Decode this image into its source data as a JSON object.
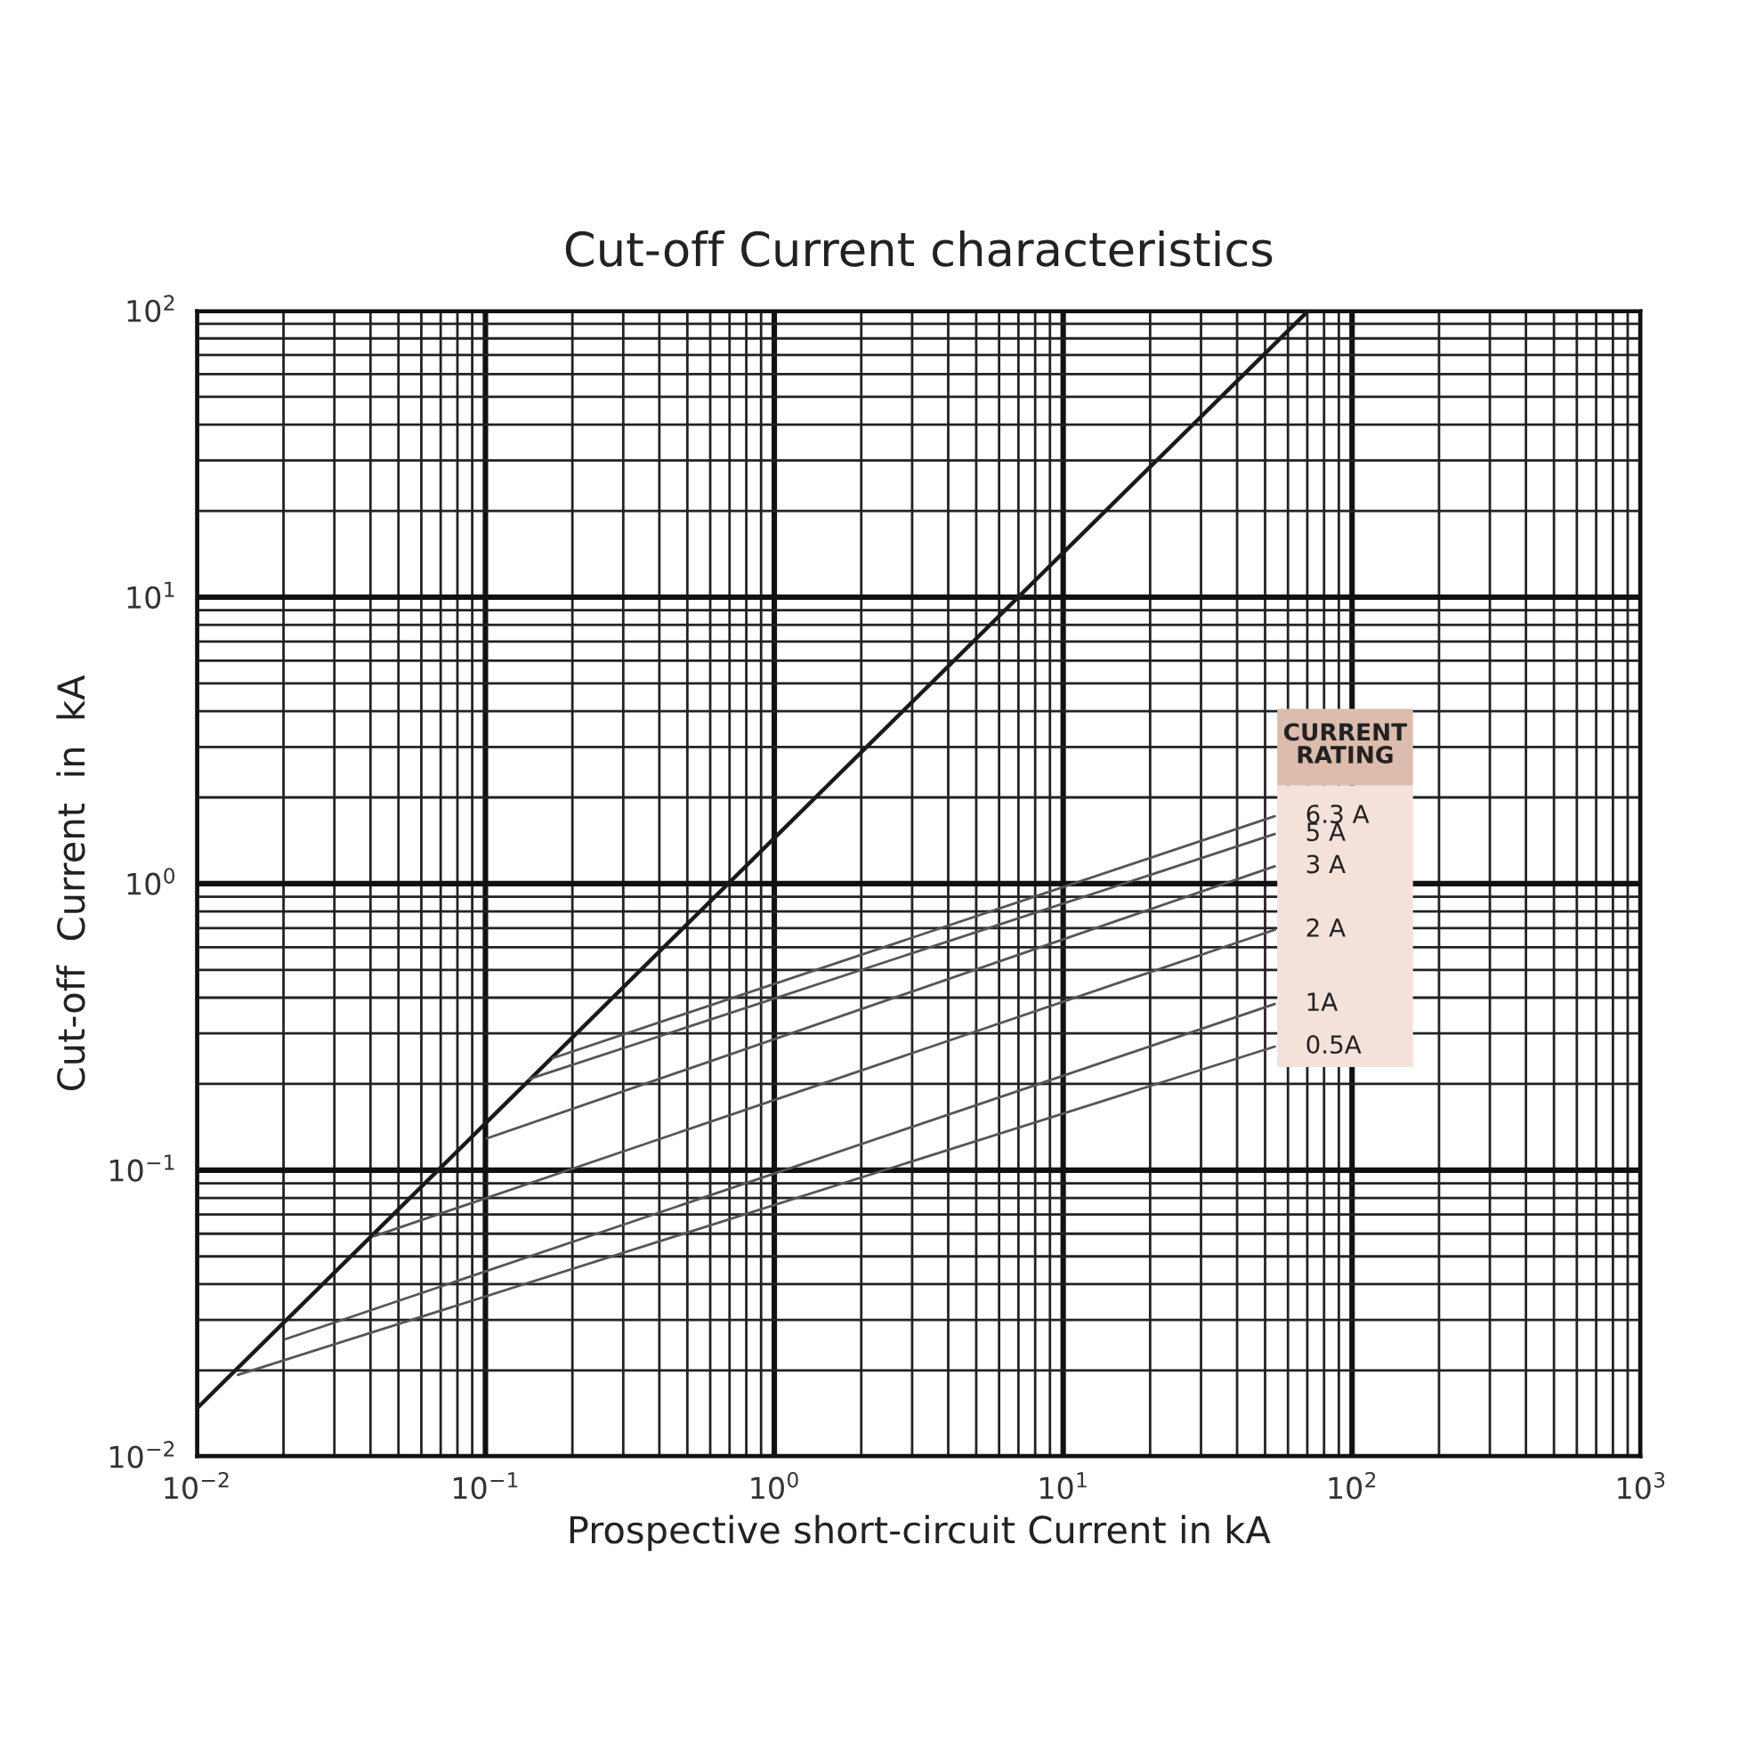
{
  "chart_data": {
    "type": "line",
    "title": "Cut-off Current characteristics",
    "xlabel": "Prospective short-circuit Current in kA",
    "ylabel": "Cut-off  Current  in  kA",
    "legend_title": "CURRENT RATING",
    "legend": "right",
    "log": "xy",
    "grid": true,
    "xlim": [
      0.01,
      1000
    ],
    "ylim": [
      0.01,
      100
    ],
    "xticks": [
      {
        "value": 0.01,
        "label": "10$^{−2}$"
      },
      {
        "value": 0.1,
        "label": "10$^{−1}$"
      },
      {
        "value": 1,
        "label": "10$^{0}$"
      },
      {
        "value": 10,
        "label": "10$^{1}$"
      },
      {
        "value": 100,
        "label": "10$^{2}$"
      },
      {
        "value": 1000,
        "label": "10$^{3}$"
      }
    ],
    "yticks": [
      {
        "value": 0.01,
        "label": "10$^{−2}$"
      },
      {
        "value": 0.1,
        "label": "10$^{−1}$"
      },
      {
        "value": 1,
        "label": "10$^{0}$"
      },
      {
        "value": 10,
        "label": "10$^{1}$"
      },
      {
        "value": 100,
        "label": "10$^{2}$"
      }
    ],
    "series": [
      {
        "color": "#1a1a1a",
        "x": [
          0.01,
          70.6
        ],
        "values": [
          0.0147,
          100
        ]
      },
      {
        "name": "6.3 A",
        "color": "#555555",
        "x": [
          0.171,
          54
        ],
        "values": [
          0.246,
          1.72
        ]
      },
      {
        "name": "5 A",
        "color": "#555555",
        "x": [
          0.142,
          54
        ],
        "values": [
          0.208,
          1.49
        ]
      },
      {
        "name": "3 A",
        "color": "#555555",
        "x": [
          0.101,
          54
        ],
        "values": [
          0.129,
          1.15
        ]
      },
      {
        "name": "2 A",
        "color": "#555555",
        "x": [
          0.0413,
          54
        ],
        "values": [
          0.0589,
          0.69
        ]
      },
      {
        "name": "1A",
        "color": "#555555",
        "x": [
          0.0203,
          54
        ],
        "values": [
          0.0257,
          0.38
        ]
      },
      {
        "name": "0.5A",
        "color": "#555555",
        "x": [
          0.0139,
          54
        ],
        "values": [
          0.0193,
          0.27
        ]
      }
    ]
  }
}
